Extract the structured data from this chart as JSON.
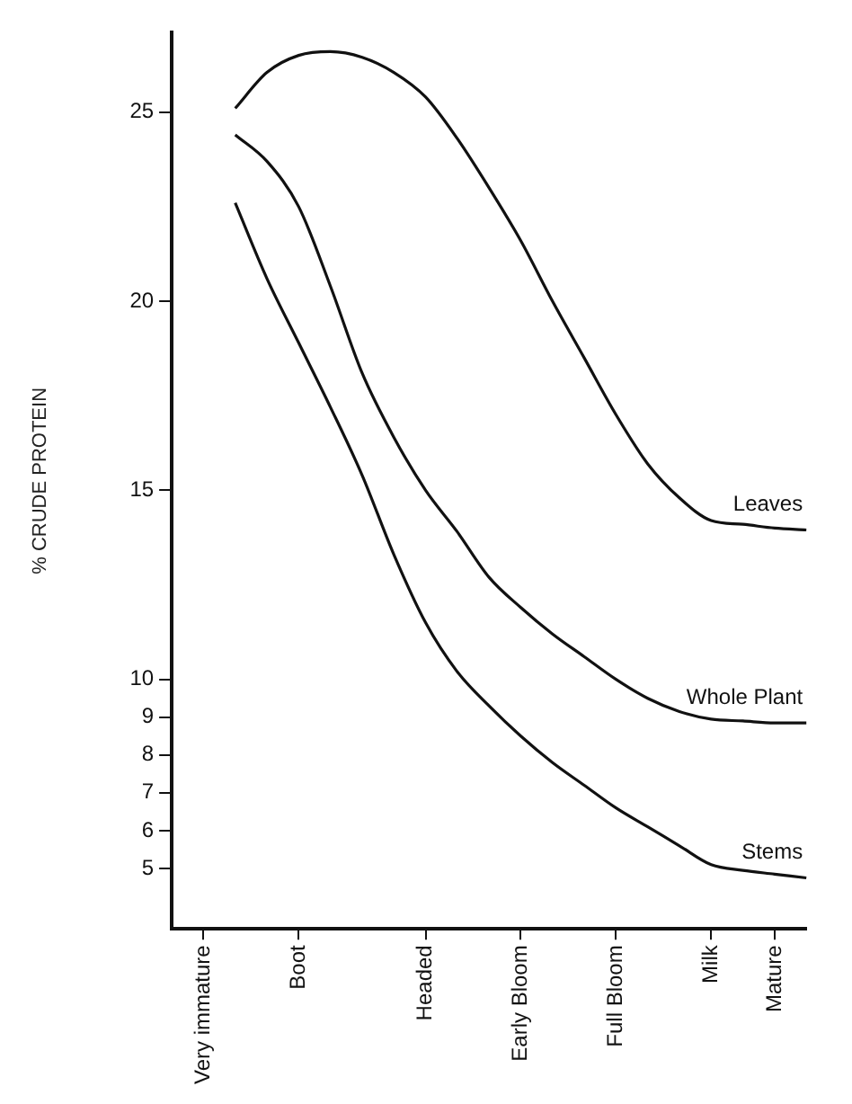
{
  "chart_data": {
    "type": "line",
    "ylabel": "% CRUDE PROTEIN",
    "categories": [
      null,
      "Very immature",
      null,
      null,
      "Boot",
      null,
      null,
      null,
      "Headed",
      null,
      null,
      "Early Bloom",
      null,
      null,
      "Full Bloom",
      null,
      null,
      "Milk",
      null,
      "Mature",
      null
    ],
    "ylim": [
      3.4,
      27.1
    ],
    "yticks": [
      5,
      6,
      7,
      8,
      9,
      10,
      15,
      20,
      25
    ],
    "grid": false,
    "legend": false,
    "marker": "none",
    "line_style": "solid",
    "series": [
      {
        "name": "Leaves",
        "color": "#111111",
        "values": [
          null,
          null,
          25.1,
          26.05,
          26.5,
          26.6,
          26.45,
          26.05,
          25.4,
          24.3,
          23.0,
          21.6,
          20.0,
          18.5,
          17.0,
          15.7,
          14.8,
          14.2,
          14.1,
          14.0,
          13.95
        ]
      },
      {
        "name": "Whole Plant",
        "color": "#111111",
        "values": [
          null,
          null,
          24.4,
          23.7,
          22.5,
          20.4,
          18.1,
          16.4,
          15.0,
          13.9,
          12.7,
          11.9,
          11.2,
          10.6,
          10.0,
          9.5,
          9.15,
          8.95,
          8.9,
          8.85,
          8.85
        ]
      },
      {
        "name": "Stems",
        "color": "#111111",
        "values": [
          null,
          null,
          22.6,
          20.6,
          18.9,
          17.2,
          15.4,
          13.3,
          11.5,
          10.2,
          9.3,
          8.5,
          7.8,
          7.2,
          6.6,
          6.1,
          5.6,
          5.1,
          4.95,
          4.85,
          4.75
        ]
      }
    ]
  }
}
